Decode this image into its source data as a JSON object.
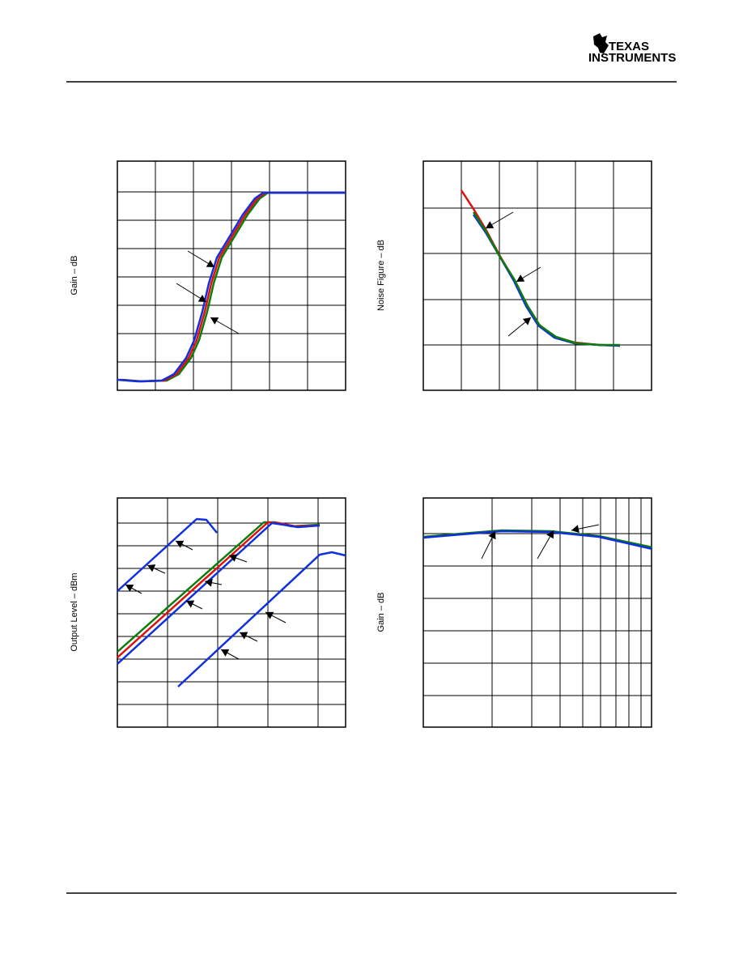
{
  "header": {
    "logo_line1": "TEXAS",
    "logo_line2": "INSTRUMENTS"
  },
  "figures": [
    {
      "y_label": "Gain – dB"
    },
    {
      "y_label": "Noise Figure – dB"
    },
    {
      "y_label": "Output Level – dBm"
    },
    {
      "y_label": "Gain – dB"
    }
  ]
}
